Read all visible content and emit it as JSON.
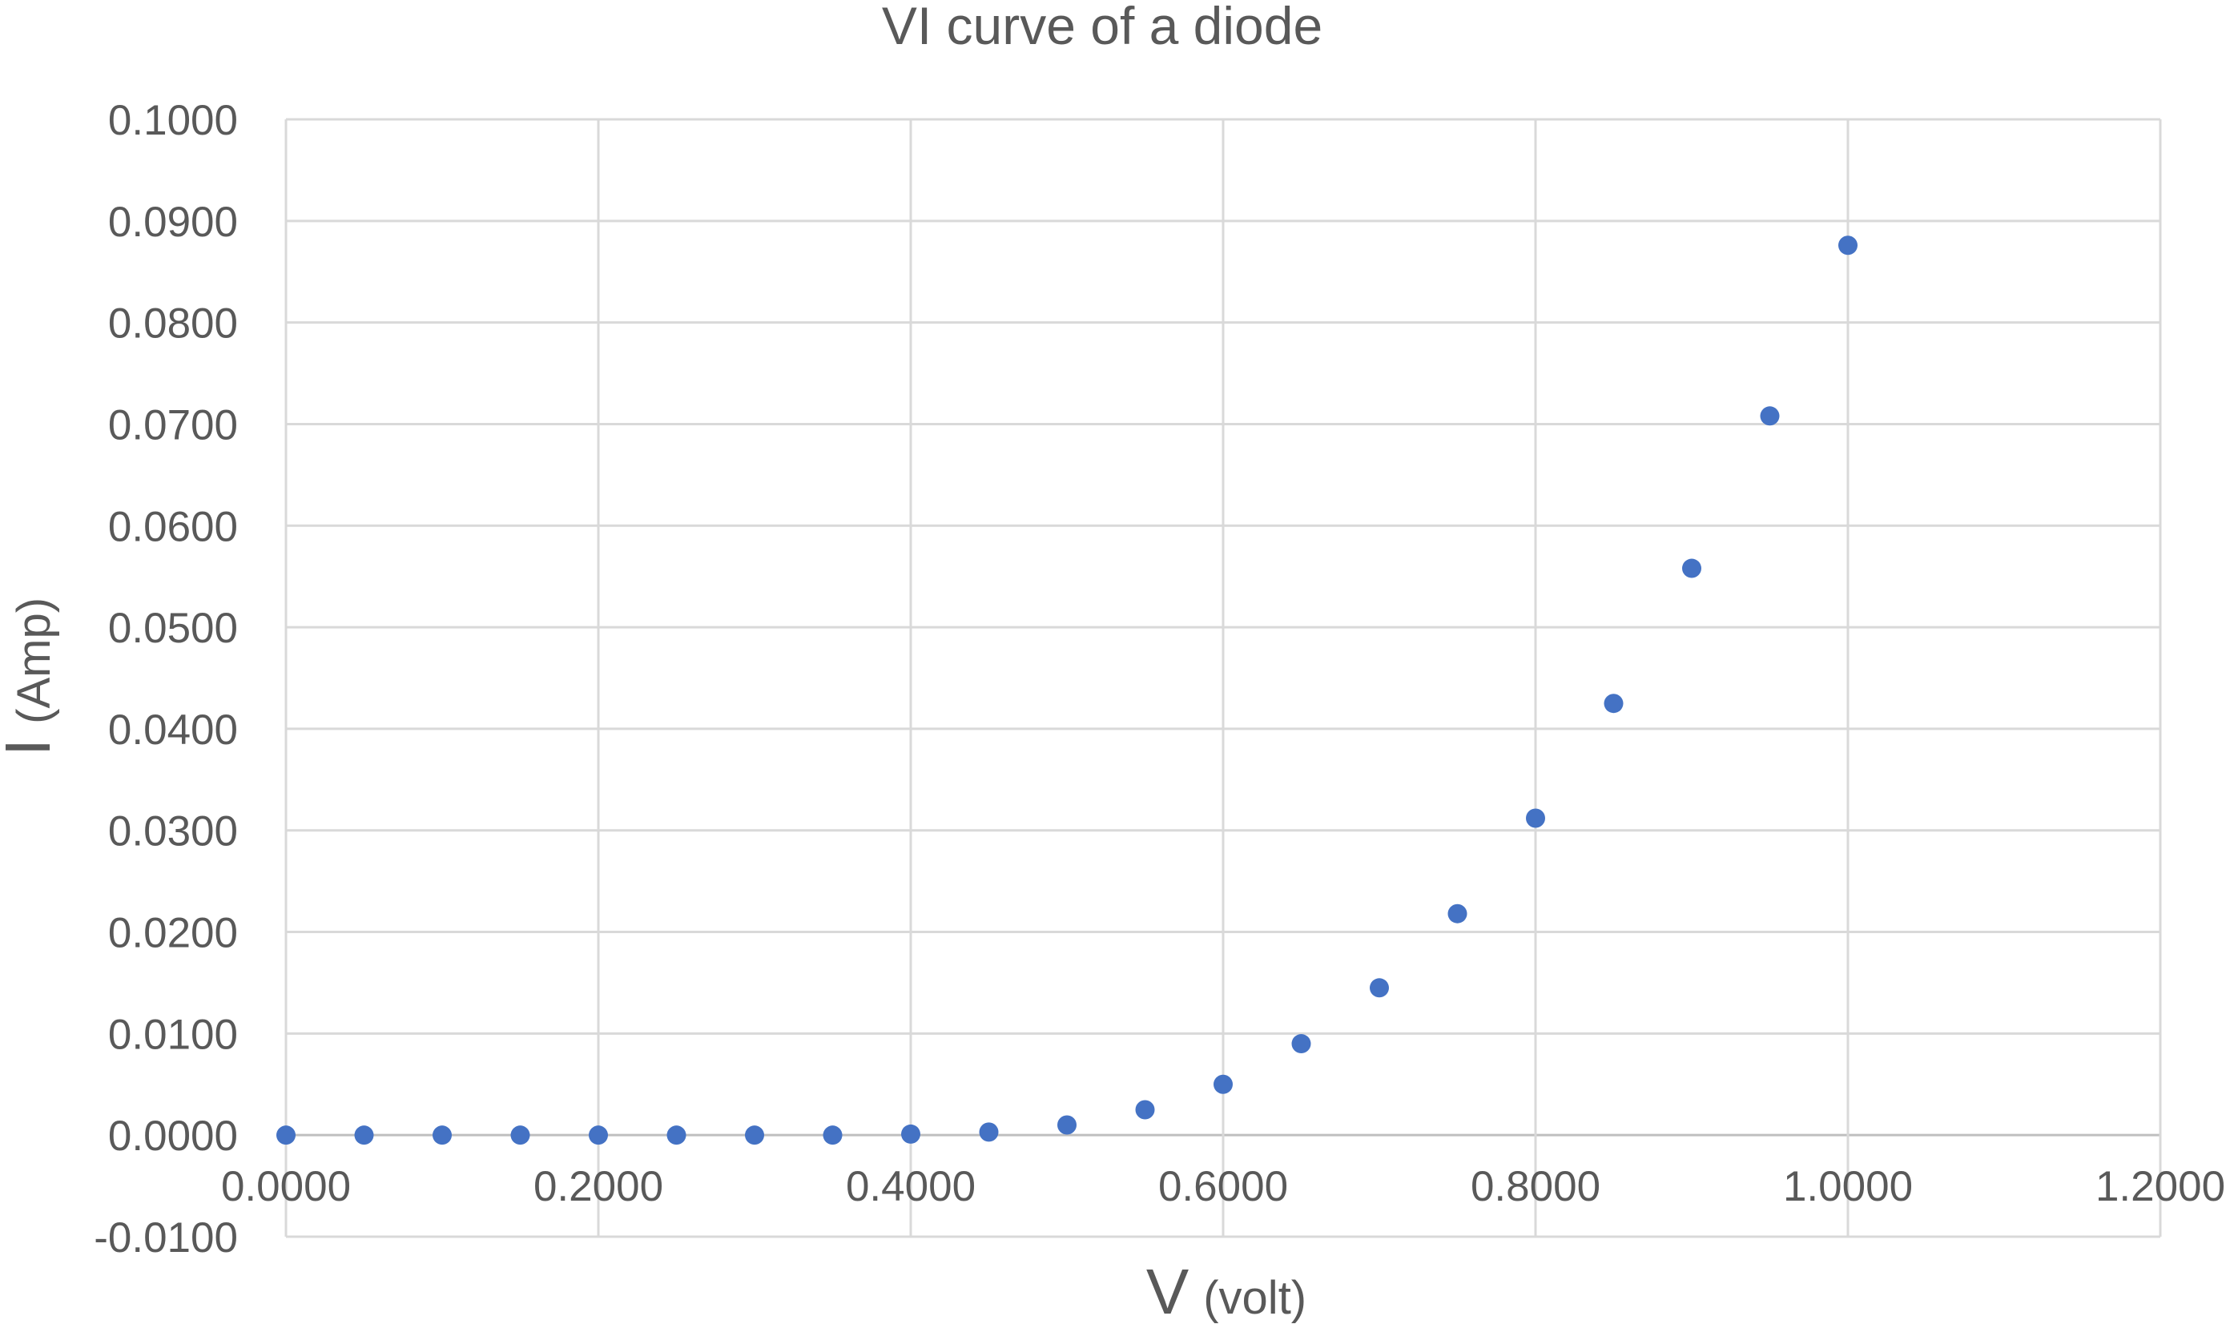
{
  "chart_data": {
    "type": "scatter",
    "title": "VI curve of a diode",
    "x_axis": {
      "label": "V",
      "unit": "(volt)",
      "range": [
        0,
        1.2
      ],
      "ticks": [
        0,
        0.2,
        0.4,
        0.6,
        0.8,
        1.0,
        1.2
      ],
      "tick_labels": [
        "0.0000",
        "0.2000",
        "0.4000",
        "0.6000",
        "0.8000",
        "1.0000",
        "1.2000"
      ]
    },
    "y_axis": {
      "label": "I",
      "unit": "(Amp)",
      "range": [
        -0.01,
        0.1
      ],
      "ticks": [
        -0.01,
        0,
        0.01,
        0.02,
        0.03,
        0.04,
        0.05,
        0.06,
        0.07,
        0.08,
        0.09,
        0.1
      ],
      "tick_labels": [
        "-0.0100",
        "0.0000",
        "0.0100",
        "0.0200",
        "0.0300",
        "0.0400",
        "0.0500",
        "0.0600",
        "0.0700",
        "0.0800",
        "0.0900",
        "0.1000"
      ]
    },
    "grid": true,
    "legend": false,
    "marker_color": "#4472c4",
    "series": [
      {
        "x": [
          0,
          0.05,
          0.1,
          0.15,
          0.2,
          0.25,
          0.3,
          0.35,
          0.4,
          0.45,
          0.5,
          0.55,
          0.6,
          0.65,
          0.7,
          0.75,
          0.8,
          0.85,
          0.9,
          0.95,
          1.0
        ],
        "y": [
          0,
          0,
          0,
          0,
          0,
          0,
          0,
          0,
          0.0001,
          0.0003,
          0.001,
          0.0025,
          0.005,
          0.009,
          0.0145,
          0.0218,
          0.0312,
          0.0425,
          0.0558,
          0.0708,
          0.0876
        ]
      }
    ]
  }
}
